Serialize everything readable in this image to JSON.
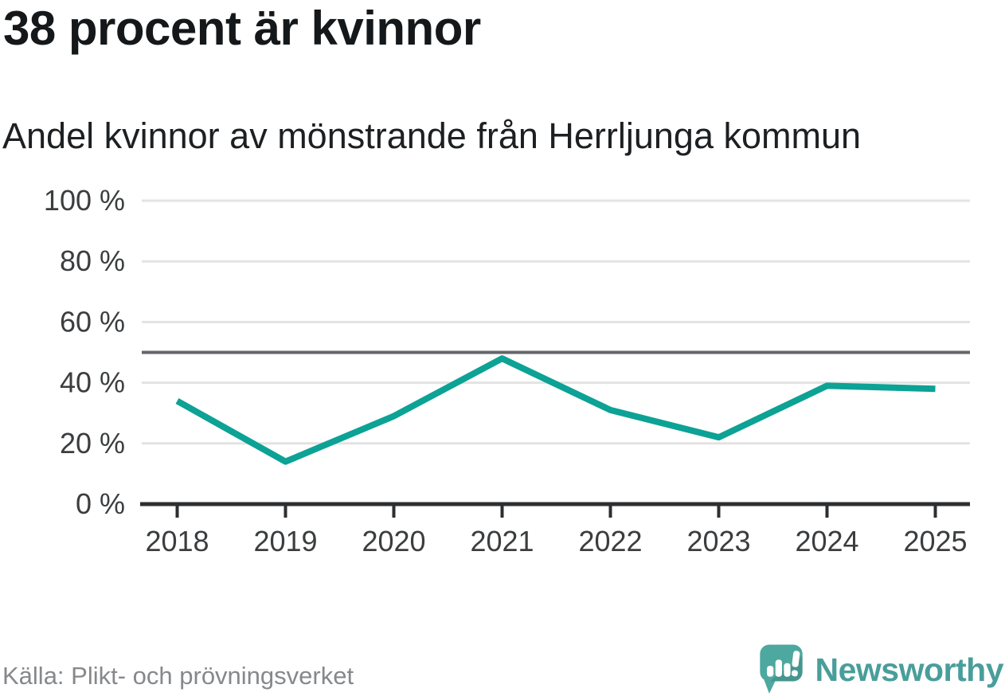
{
  "header": {
    "title": "38 procent är kvinnor",
    "subtitle": "Andel kvinnor av mönstrande från Herrljunga kommun"
  },
  "chart_data": {
    "type": "line",
    "title": "38 procent är kvinnor",
    "subtitle": "Andel kvinnor av mönstrande från Herrljunga kommun",
    "categories": [
      "2018",
      "2019",
      "2020",
      "2021",
      "2022",
      "2023",
      "2024",
      "2025"
    ],
    "series": [
      {
        "name": "Andel kvinnor av mönstrande",
        "values": [
          34,
          14,
          29,
          48,
          31,
          22,
          39,
          38
        ]
      }
    ],
    "unit": "%",
    "ylim": [
      0,
      100
    ],
    "yticks": [
      0,
      20,
      40,
      60,
      80,
      100
    ],
    "ytick_suffix": " %",
    "reference_line": 50,
    "grid": true,
    "legend_position": "none",
    "colors": {
      "line": "#0ca295",
      "grid": "#e3e3e3",
      "axis": "#2c2e30",
      "reference": "#63666b",
      "tick_label": "#3b3d3f"
    }
  },
  "footer": {
    "source": "Källa: Plikt- och prövningsverket",
    "brand": "Newsworthy",
    "brand_text_color": "#499e9a",
    "brand_icon_color": "#4da89f"
  }
}
